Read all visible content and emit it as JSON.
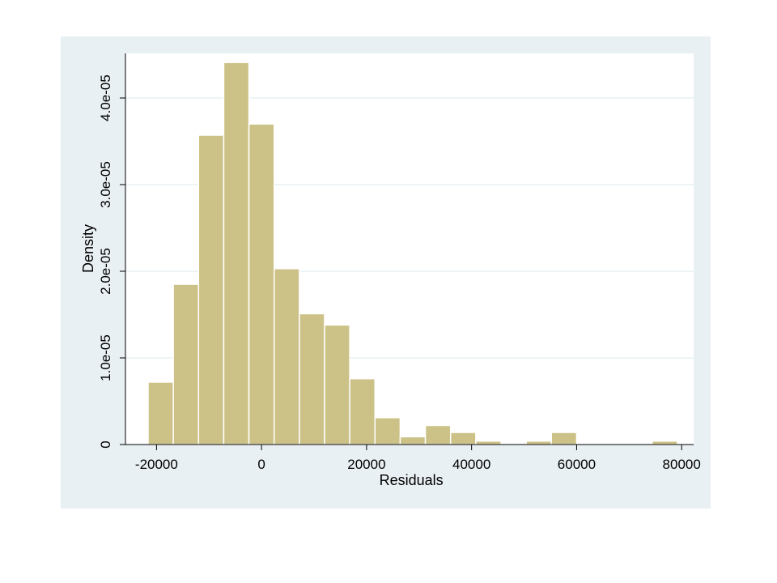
{
  "chart_data": {
    "type": "bar",
    "subtype": "histogram",
    "xlabel": "Residuals",
    "ylabel": "Density",
    "xlim": [
      -24000,
      82000
    ],
    "ylim": [
      0,
      4.5e-05
    ],
    "grid": "horizontal",
    "x_ticks": [
      {
        "value": -20000,
        "label": "-20000"
      },
      {
        "value": 0,
        "label": "0"
      },
      {
        "value": 20000,
        "label": "20000"
      },
      {
        "value": 40000,
        "label": "40000"
      },
      {
        "value": 60000,
        "label": "60000"
      },
      {
        "value": 80000,
        "label": "80000"
      }
    ],
    "y_ticks": [
      {
        "value": 0,
        "label": "0"
      },
      {
        "value": 1e-05,
        "label": "1.0e-05"
      },
      {
        "value": 2e-05,
        "label": "2.0e-05"
      },
      {
        "value": 3e-05,
        "label": "3.0e-05"
      },
      {
        "value": 4e-05,
        "label": "4.0e-05"
      }
    ],
    "bar_color": "#ccc287",
    "bar_edge_color": "#ffffff",
    "plot_background": "#ffffff",
    "panel_background": "#e9f0f3",
    "gridline_color": "#e9f0f3",
    "bins": [
      {
        "start": -21600,
        "end": -16800,
        "density": 7.2e-06
      },
      {
        "start": -16800,
        "end": -12000,
        "density": 1.85e-05
      },
      {
        "start": -12000,
        "end": -7200,
        "density": 3.57e-05
      },
      {
        "start": -7200,
        "end": -2400,
        "density": 4.41e-05
      },
      {
        "start": -2400,
        "end": 2400,
        "density": 3.7e-05
      },
      {
        "start": 2400,
        "end": 7200,
        "density": 2.03e-05
      },
      {
        "start": 7200,
        "end": 12000,
        "density": 1.51e-05
      },
      {
        "start": 12000,
        "end": 16800,
        "density": 1.38e-05
      },
      {
        "start": 16800,
        "end": 21600,
        "density": 7.6e-06
      },
      {
        "start": 21600,
        "end": 26400,
        "density": 3.1e-06
      },
      {
        "start": 26400,
        "end": 31200,
        "density": 9e-07
      },
      {
        "start": 31200,
        "end": 36000,
        "density": 2.2e-06
      },
      {
        "start": 36000,
        "end": 40800,
        "density": 1.4e-06
      },
      {
        "start": 40800,
        "end": 45600,
        "density": 4e-07
      },
      {
        "start": 45600,
        "end": 50400,
        "density": 0
      },
      {
        "start": 50400,
        "end": 55200,
        "density": 4e-07
      },
      {
        "start": 55200,
        "end": 60000,
        "density": 1.4e-06
      },
      {
        "start": 60000,
        "end": 64800,
        "density": 0
      },
      {
        "start": 64800,
        "end": 69600,
        "density": 0
      },
      {
        "start": 69600,
        "end": 74400,
        "density": 0
      },
      {
        "start": 74400,
        "end": 79200,
        "density": 4e-07
      }
    ]
  }
}
